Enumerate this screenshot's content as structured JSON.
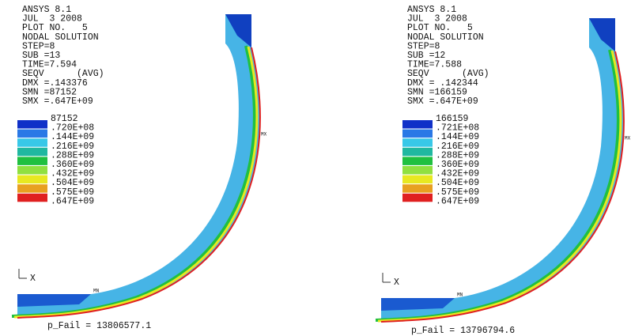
{
  "panels": [
    {
      "header": [
        "ANSYS 8.1",
        "JUL  3 2008",
        "PLOT NO.   5",
        "NODAL SOLUTION",
        "STEP=8",
        "SUB =13",
        "TIME=7.594",
        "SEQV      (AVG)",
        "DMX =.143376",
        "SMN =87152",
        "SMX =.647E+09"
      ],
      "legend": [
        "87152",
        ".720E+08",
        ".144E+09",
        ".216E+09",
        ".288E+09",
        ".360E+09",
        ".432E+09",
        ".504E+09",
        ".575E+09",
        ".647E+09"
      ],
      "axis": "X",
      "min_marker": "MN",
      "max_marker": "MX",
      "footer": "p_Fail = 13806577.1"
    },
    {
      "header": [
        "ANSYS 8.1",
        "JUL  3 2008",
        "PLOT NO.   5",
        "NODAL SOLUTION",
        "STEP=8",
        "SUB =12",
        "TIME=7.588",
        "SEQV      (AVG)",
        "DMX = .142344",
        "SMN =166159",
        "SMX =.647E+09"
      ],
      "legend": [
        "166159",
        ".721E+08",
        ".144E+09",
        ".216E+09",
        ".288E+09",
        ".360E+09",
        ".432E+09",
        ".504E+09",
        ".575E+09",
        ".647E+09"
      ],
      "axis": "X",
      "min_marker": "MN",
      "max_marker": "MX",
      "footer": "p_Fail = 13796794.6"
    }
  ]
}
